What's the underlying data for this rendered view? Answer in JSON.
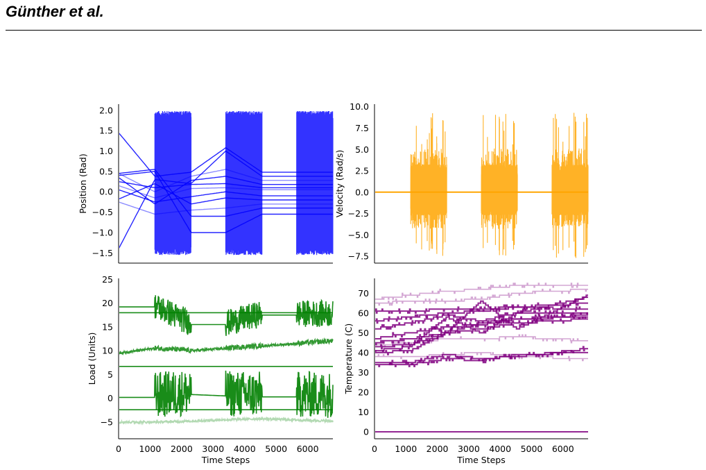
{
  "header": {
    "title": "Günther et al."
  },
  "colors": {
    "position": "#0000ff",
    "velocity": "#ffa500",
    "load": "#008000",
    "temperature": "#800080"
  },
  "chart_data": [
    {
      "id": "position",
      "type": "line",
      "title": "",
      "xlabel": "",
      "ylabel": "Position (Rad)",
      "xlim": [
        0,
        6800
      ],
      "ylim": [
        -1.75,
        2.15
      ],
      "xticks": [],
      "yticks": [
        -1.5,
        -1.0,
        -0.5,
        0.0,
        0.5,
        1.0,
        1.5,
        2.0
      ],
      "ytick_labels": [
        "−1.5",
        "−1.0",
        "−0.5",
        "0.0",
        "0.5",
        "1.0",
        "1.5",
        "2.0"
      ],
      "grid": false,
      "active_segments": [
        [
          1150,
          2300
        ],
        [
          3400,
          4550
        ],
        [
          5650,
          6800
        ]
      ],
      "active_range": [
        -1.55,
        1.98
      ],
      "series": [
        {
          "values": [
            1.45,
            0.38,
            0.48,
            1.08,
            0.48,
            0.48
          ]
        },
        {
          "values": [
            -1.4,
            0.3,
            0.2,
            1.0,
            0.38,
            0.38
          ]
        },
        {
          "values": [
            0.45,
            0.0,
            0.38,
            0.55,
            0.28,
            0.28
          ]
        },
        {
          "values": [
            0.35,
            -0.3,
            0.28,
            0.38,
            0.18,
            0.18
          ]
        },
        {
          "values": [
            0.25,
            0.1,
            0.18,
            0.2,
            0.1,
            0.1
          ]
        },
        {
          "values": [
            0.15,
            -0.15,
            0.08,
            0.1,
            0.05,
            0.05
          ]
        },
        {
          "values": [
            0.05,
            -0.25,
            -0.12,
            0.0,
            -0.1,
            -0.1
          ]
        },
        {
          "values": [
            -0.18,
            0.2,
            -0.3,
            -0.15,
            -0.2,
            -0.2
          ]
        },
        {
          "values": [
            -0.25,
            -0.55,
            -0.45,
            -0.4,
            -0.3,
            -0.3
          ]
        },
        {
          "values": [
            0.45,
            0.55,
            -0.6,
            -0.6,
            -0.4,
            -0.4
          ]
        },
        {
          "values": [
            0.4,
            0.5,
            -1.0,
            -1.0,
            -0.55,
            -0.55
          ]
        }
      ]
    },
    {
      "id": "velocity",
      "type": "line",
      "title": "",
      "xlabel": "",
      "ylabel": "Velocity (Rad/s)",
      "xlim": [
        0,
        6800
      ],
      "ylim": [
        -8.3,
        10.3
      ],
      "xticks": [],
      "yticks": [
        -7.5,
        -5.0,
        -2.5,
        0.0,
        2.5,
        5.0,
        7.5,
        10.0
      ],
      "ytick_labels": [
        "−7.5",
        "−5.0",
        "−2.5",
        "0.0",
        "2.5",
        "5.0",
        "7.5",
        "10.0"
      ],
      "grid": false,
      "baseline": 0.0,
      "active_segments": [
        [
          1150,
          2300
        ],
        [
          3400,
          4550
        ],
        [
          5650,
          6800
        ]
      ],
      "active_range": [
        -7.8,
        9.3
      ]
    },
    {
      "id": "load",
      "type": "line",
      "title": "",
      "xlabel": "Time Steps",
      "ylabel": "Load (Units)",
      "xlim": [
        0,
        6800
      ],
      "ylim": [
        -8.5,
        25.2
      ],
      "xticks": [
        0,
        1000,
        2000,
        3000,
        4000,
        5000,
        6000
      ],
      "yticks": [
        -5,
        0,
        5,
        10,
        15,
        20,
        25
      ],
      "ytick_labels": [
        "−5",
        "0",
        "5",
        "10",
        "15",
        "20",
        "25"
      ],
      "grid": false,
      "series": [
        {
          "values": [
            19.2,
            19.2,
            15.5,
            15.5,
            17.5,
            17.5
          ],
          "active_range": [
            15.5,
            23.5
          ]
        },
        {
          "values": [
            18.0,
            18.0,
            18.0,
            18.0,
            18.0,
            18.0
          ]
        },
        {
          "values": [
            9.5,
            10.5,
            10.0,
            10.5,
            11.0,
            12.0
          ],
          "active_range": [
            9.5,
            12.5
          ]
        },
        {
          "values": [
            6.7,
            6.7,
            6.7,
            6.7,
            6.7,
            6.7
          ]
        },
        {
          "values": [
            0.2,
            0.2,
            0.8,
            0.5,
            0.3,
            0.3
          ],
          "active_range": [
            -6.0,
            8.0
          ]
        },
        {
          "values": [
            -2.4,
            -2.4,
            -2.4,
            -2.4,
            -2.4,
            -2.4
          ]
        },
        {
          "values": [
            -5.0,
            -5.0,
            -4.8,
            -4.5,
            -4.3,
            -4.8
          ]
        }
      ]
    },
    {
      "id": "temperature",
      "type": "line",
      "title": "",
      "xlabel": "Time Steps",
      "ylabel": "Temperature (C)",
      "xlim": [
        0,
        6800
      ],
      "ylim": [
        -3.5,
        77.5
      ],
      "xticks": [
        0,
        1000,
        2000,
        3000,
        4000,
        5000,
        6000
      ],
      "yticks": [
        0,
        10,
        20,
        30,
        40,
        50,
        60,
        70
      ],
      "grid": false,
      "series": [
        {
          "values": [
            67,
            69,
            71,
            72,
            74,
            74
          ]
        },
        {
          "values": [
            65,
            66,
            66,
            67,
            70,
            72
          ]
        },
        {
          "values": [
            56,
            58,
            60,
            61,
            63,
            62
          ]
        },
        {
          "values": [
            61,
            61,
            62,
            62,
            63,
            65
          ]
        },
        {
          "values": [
            52,
            55,
            59,
            56,
            60,
            60
          ]
        },
        {
          "values": [
            47,
            50,
            53,
            54,
            57,
            59
          ]
        },
        {
          "values": [
            45,
            47,
            50,
            52,
            55,
            57
          ]
        },
        {
          "values": [
            44,
            45,
            47,
            47,
            48,
            46
          ]
        },
        {
          "values": [
            43,
            44,
            50,
            55,
            57,
            58
          ]
        },
        {
          "values": [
            41,
            43,
            58,
            50,
            60,
            68
          ]
        },
        {
          "values": [
            40,
            41,
            50,
            66,
            52,
            69
          ]
        },
        {
          "values": [
            38,
            38,
            39,
            40,
            38,
            37
          ]
        },
        {
          "values": [
            35,
            35,
            39,
            37,
            38,
            42
          ]
        },
        {
          "values": [
            34,
            34,
            37,
            36,
            39,
            40
          ]
        },
        {
          "values": [
            0,
            0,
            0,
            0,
            0,
            0
          ]
        }
      ]
    }
  ]
}
